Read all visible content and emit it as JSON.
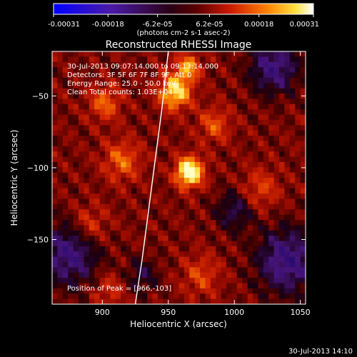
{
  "colorbar": {
    "tick_labels": [
      "-0.00031",
      "-0.00018",
      "-6.2e-05",
      "6.2e-05",
      "0.00018",
      "0.00031"
    ],
    "tick_values": [
      -0.00031,
      -0.00018,
      -6.2e-05,
      6.2e-05,
      0.00018,
      0.00031
    ],
    "range": [
      -0.00031,
      0.00031
    ],
    "units_label": "(photons cm-2 s-1 asec-2)"
  },
  "chart_data": {
    "type": "heatmap",
    "title": "Reconstructed RHESSI Image",
    "xlabel": "Heliocentric X (arcsec)",
    "ylabel": "Heliocentric Y (arcsec)",
    "xlim": [
      862,
      1054
    ],
    "ylim": [
      -195,
      -19
    ],
    "x_ticks": [
      900,
      950,
      1000,
      1050
    ],
    "y_ticks": [
      -50,
      -100,
      -150
    ],
    "x_tick_labels": [
      "900",
      "950",
      "1000",
      "1050"
    ],
    "y_tick_labels": [
      "−50",
      "−100",
      "−150"
    ],
    "colormap": "red-temperature (blue-purple negative, black, red, orange, yellow, white)",
    "peak": {
      "x": 966,
      "y": -103
    },
    "limb_curve": [
      {
        "x": 925,
        "y": -195
      },
      {
        "x": 930,
        "y": -165
      },
      {
        "x": 935,
        "y": -130
      },
      {
        "x": 940,
        "y": -95
      },
      {
        "x": 945,
        "y": -60
      },
      {
        "x": 948,
        "y": -35
      },
      {
        "x": 950,
        "y": -19
      }
    ],
    "annotations": [
      "30-Jul-2013 09:07:14.000 to 09:13:14.000",
      "Detectors: 3F 5F 6F 7F 8F 9F, Att 0",
      "Energy Range: 25.0 - 50.0 keV",
      "Clean      Total counts: 1.03E+04"
    ],
    "peak_label": "Position of Peak = [966,-103]"
  },
  "footer": {
    "timestamp": "30-Jul-2013 14:10"
  },
  "colors": {
    "background": "#000000",
    "foreground": "#ffffff"
  }
}
